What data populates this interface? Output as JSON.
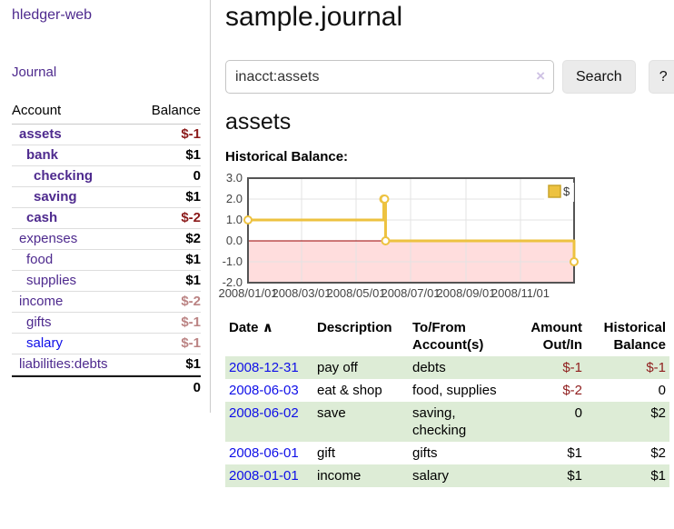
{
  "brand": "hledger-web",
  "nav": {
    "journal": "Journal"
  },
  "colors": {
    "link_purple": "#4e2a8e",
    "link_blue": "#0f0fe8",
    "negative_strong": "#8b1a1a",
    "negative_soft": "#bb8383",
    "stripe_green": "#ddecd6",
    "series_yellow": "#edc240",
    "negative_region_pink": "#ffdddd",
    "button_gray": "#ebebeb"
  },
  "sidebar": {
    "col_account": "Account",
    "col_balance": "Balance",
    "accounts": [
      {
        "name": "assets",
        "depth": 1,
        "bold": true,
        "balance": "$-1",
        "negative": "strong"
      },
      {
        "name": "bank",
        "depth": 2,
        "bold": true,
        "balance": "$1"
      },
      {
        "name": "checking",
        "depth": 3,
        "bold": true,
        "balance": "0"
      },
      {
        "name": "saving",
        "depth": 3,
        "bold": true,
        "balance": "$1"
      },
      {
        "name": "cash",
        "depth": 2,
        "bold": true,
        "balance": "$-2",
        "negative": "strong"
      },
      {
        "name": "expenses",
        "depth": 1,
        "bold": false,
        "balance": "$2"
      },
      {
        "name": "food",
        "depth": 2,
        "bold": false,
        "balance": "$1"
      },
      {
        "name": "supplies",
        "depth": 2,
        "bold": false,
        "balance": "$1"
      },
      {
        "name": "income",
        "depth": 1,
        "bold": false,
        "balance": "$-2",
        "negative": "soft"
      },
      {
        "name": "gifts",
        "depth": 2,
        "bold": false,
        "balance": "$-1",
        "negative": "soft"
      },
      {
        "name": "salary",
        "depth": 2,
        "bold": false,
        "balance": "$-1",
        "negative": "soft",
        "blue": true
      },
      {
        "name": "liabilities:debts",
        "depth": 1,
        "bold": false,
        "balance": "$1"
      }
    ],
    "total": "0"
  },
  "main": {
    "title": "sample.journal",
    "search": {
      "value": "inacct:assets",
      "clear_label": "×",
      "search_button": "Search",
      "help_button": "?"
    },
    "account_heading": "assets",
    "section_label": "Historical Balance:"
  },
  "chart_data": {
    "type": "line",
    "step": true,
    "title": "Historical Balance",
    "x_range": [
      "2008-01-01",
      "2008-12-31"
    ],
    "ylim": [
      -2,
      3
    ],
    "yticks": [
      "3.0",
      "2.0",
      "1.0",
      "0.0",
      "-1.0",
      "-2.0"
    ],
    "xtick_labels": [
      "2008/01/01",
      "2008/03/01",
      "2008/05/01",
      "2008/07/01",
      "2008/09/01",
      "2008/11/01"
    ],
    "series": [
      {
        "name": "$",
        "color": "#edc240",
        "marker_fill": "#ffffff",
        "points": [
          {
            "x": "2008-01-01",
            "y": 1
          },
          {
            "x": "2008-06-01",
            "y": 2
          },
          {
            "x": "2008-06-02",
            "y": 2
          },
          {
            "x": "2008-06-03",
            "y": 0
          },
          {
            "x": "2008-12-31",
            "y": -1
          }
        ]
      }
    ],
    "legend": {
      "label": "$",
      "position": "top-right"
    },
    "grid": true,
    "grid_color": "#e3e3e3",
    "zero_line_color": "#990000",
    "negative_region_color": "#ffdddd",
    "border_color": "#545454"
  },
  "register": {
    "headers": {
      "date": "Date",
      "sort_icon": "∧",
      "description": "Description",
      "accounts": "To/From Account(s)",
      "amount": "Amount Out/In",
      "balance": "Historical Balance"
    },
    "rows": [
      {
        "date": "2008-12-31",
        "description": "pay off",
        "accounts": "debts",
        "amount": "$-1",
        "amount_negative": true,
        "balance": "$-1",
        "balance_negative": true
      },
      {
        "date": "2008-06-03",
        "description": "eat & shop",
        "accounts": "food, supplies",
        "amount": "$-2",
        "amount_negative": true,
        "balance": "0",
        "balance_negative": false
      },
      {
        "date": "2008-06-02",
        "description": "save",
        "accounts": "saving, checking",
        "amount": "0",
        "amount_negative": false,
        "balance": "$2",
        "balance_negative": false
      },
      {
        "date": "2008-06-01",
        "description": "gift",
        "accounts": "gifts",
        "amount": "$1",
        "amount_negative": false,
        "balance": "$2",
        "balance_negative": false
      },
      {
        "date": "2008-01-01",
        "description": "income",
        "accounts": "salary",
        "amount": "$1",
        "amount_negative": false,
        "balance": "$1",
        "balance_negative": false
      }
    ]
  }
}
